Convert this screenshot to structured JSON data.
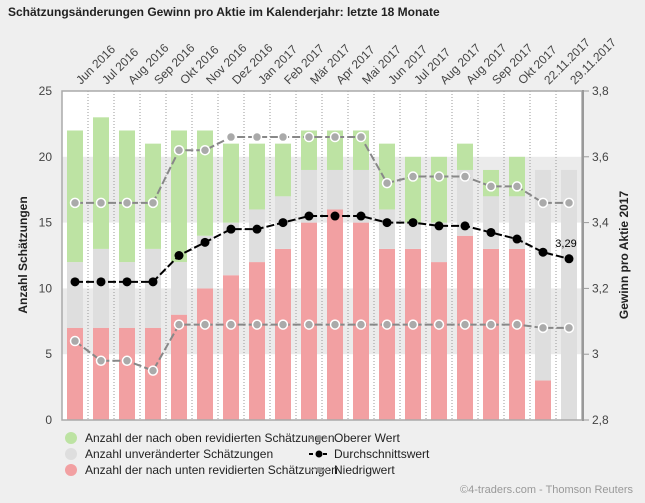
{
  "title": "Schätzungsänderungen Gewinn pro Aktie im Kalenderjahr: letzte 18 Monate",
  "credit": "©4-traders.com - Thomson Reuters",
  "chart_data": {
    "type": "bar+line",
    "title": "Schätzungsänderungen Gewinn pro Aktie im Kalenderjahr: letzte 18 Monate",
    "categories": [
      "Jun 2016",
      "Jul 2016",
      "Aug 2016",
      "Sep 2016",
      "Okt 2016",
      "Nov 2016",
      "Dez 2016",
      "Jan 2017",
      "Feb 2017",
      "Mär 2017",
      "Apr 2017",
      "Mai 2017",
      "Jun 2017",
      "Jul 2017",
      "Aug 2017",
      "Aug 2017",
      "Sep 2017",
      "Okt 2017",
      "22.11.2017",
      "29.11.2017"
    ],
    "ylabel": "Anzahl Schätzungen",
    "ylabel_right": "Gewinn pro Aktie 2017",
    "ylim": [
      0,
      25
    ],
    "yticks": [
      "0",
      "5",
      "10",
      "15",
      "20",
      "25"
    ],
    "ylim_right": [
      2.8,
      3.8
    ],
    "yticks_right": [
      "2,8",
      "3",
      "3,2",
      "3,4",
      "3,6",
      "3,8"
    ],
    "bar_series": [
      {
        "name": "Anzahl der nach unten revidierten Schätzungen",
        "color": "#f2a0a2",
        "values": [
          7,
          7,
          7,
          7,
          8,
          10,
          11,
          12,
          13,
          15,
          16,
          15,
          13,
          13,
          12,
          14,
          13,
          13,
          3,
          0
        ]
      },
      {
        "name": "Anzahl unveränderter Schätzungen",
        "color": "#dedede",
        "values": [
          5,
          6,
          5,
          6,
          4,
          4,
          4,
          4,
          4,
          4,
          3,
          4,
          3,
          2,
          3,
          5,
          4,
          4,
          16,
          19
        ]
      },
      {
        "name": "Anzahl der nach oben revidierten Schätzungen",
        "color": "#bde3a3",
        "values": [
          10,
          10,
          10,
          8,
          10,
          8,
          6,
          5,
          4,
          3,
          3,
          3,
          5,
          5,
          5,
          2,
          2,
          3,
          0,
          0
        ]
      }
    ],
    "line_series": [
      {
        "name": "Oberer Wert",
        "color": "#999999",
        "values": [
          3.46,
          3.46,
          3.46,
          3.46,
          3.62,
          3.62,
          3.66,
          3.66,
          3.66,
          3.66,
          3.66,
          3.66,
          3.52,
          3.54,
          3.54,
          3.54,
          3.51,
          3.51,
          3.46,
          3.46
        ]
      },
      {
        "name": "Durchschnittswert",
        "color": "#000000",
        "values": [
          3.22,
          3.22,
          3.22,
          3.22,
          3.3,
          3.34,
          3.38,
          3.38,
          3.4,
          3.42,
          3.42,
          3.42,
          3.4,
          3.4,
          3.39,
          3.39,
          3.37,
          3.35,
          3.31,
          3.29
        ]
      },
      {
        "name": "Niedrigwert",
        "color": "#999999",
        "values": [
          3.04,
          2.98,
          2.98,
          2.95,
          3.09,
          3.09,
          3.09,
          3.09,
          3.09,
          3.09,
          3.09,
          3.09,
          3.09,
          3.09,
          3.09,
          3.09,
          3.09,
          3.09,
          3.08,
          3.08
        ]
      }
    ],
    "annotation": "3,29",
    "grid": "alternating horizontal bands, dotted vertical lines",
    "legend_position": "bottom"
  }
}
